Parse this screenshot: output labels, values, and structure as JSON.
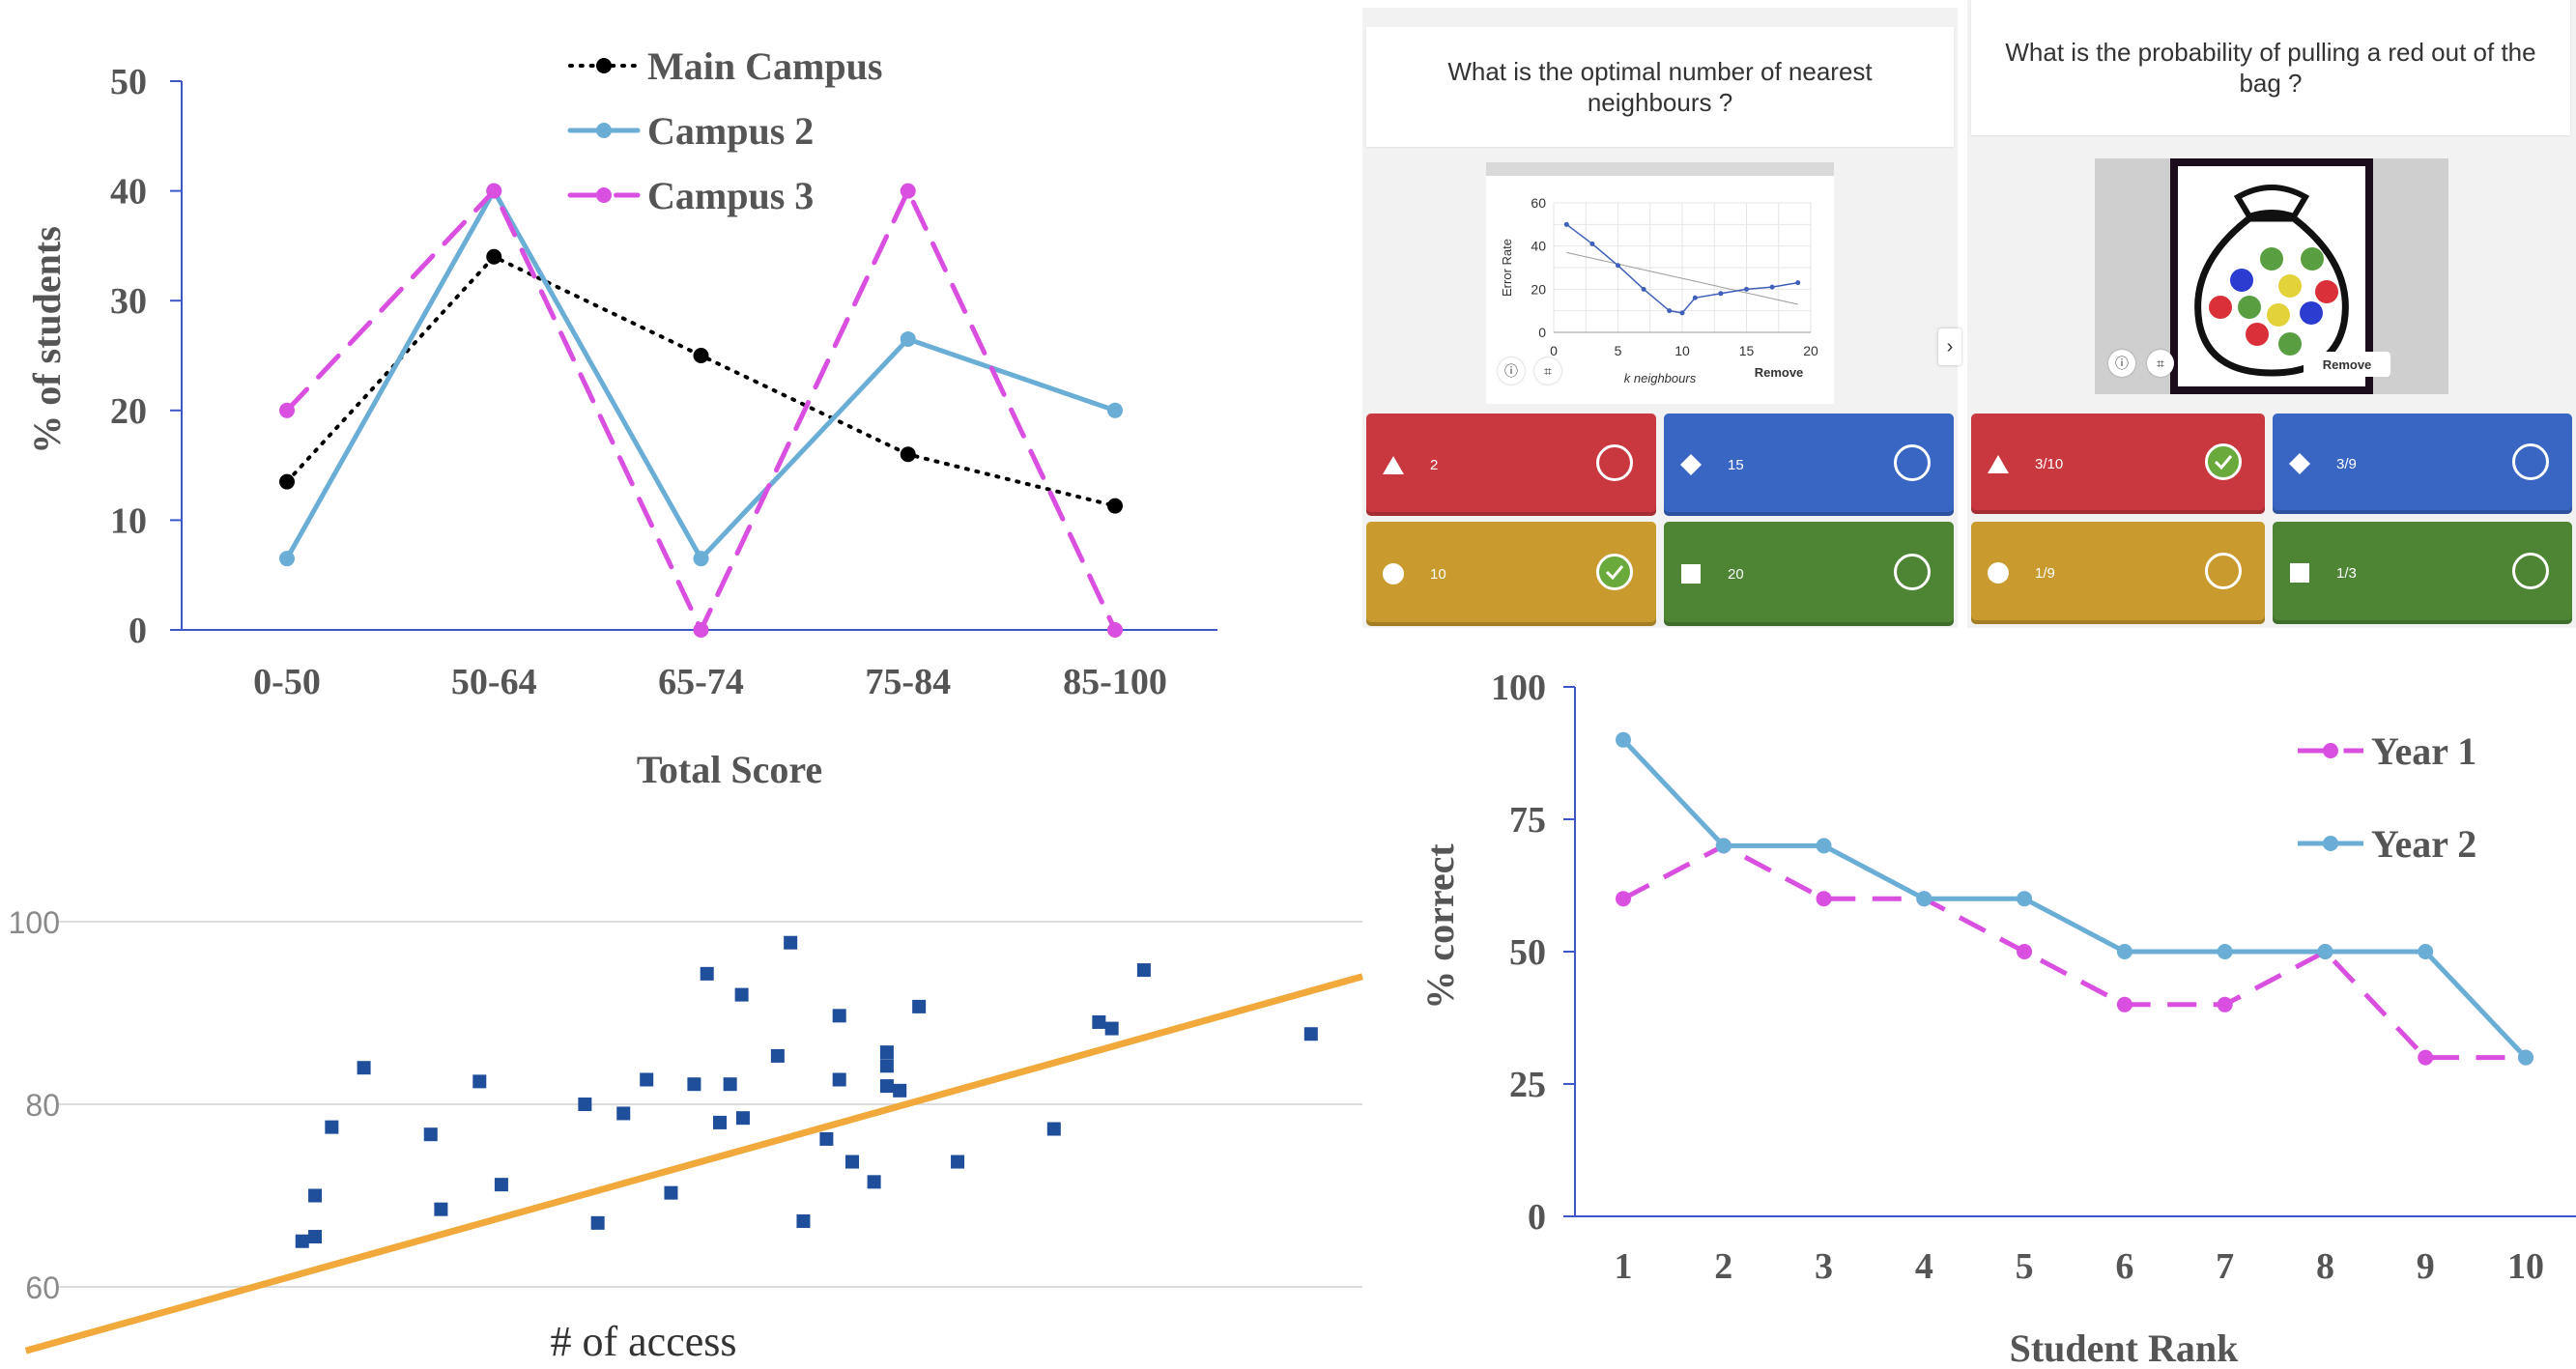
{
  "chart_data": [
    {
      "type": "line",
      "title": "",
      "xlabel": "Total Score",
      "ylabel": "% of students",
      "categories": [
        "0-50",
        "50-64",
        "65-74",
        "75-84",
        "85-100"
      ],
      "ylim": [
        0,
        50
      ],
      "yticks": [
        "0",
        "10",
        "20",
        "30",
        "40",
        "50"
      ],
      "legend_position": "top-center",
      "series": [
        {
          "name": "Main Campus",
          "values": [
            13.5,
            34,
            25,
            16,
            11.3
          ],
          "color": "#000000",
          "style": "dotted"
        },
        {
          "name": "Campus 2",
          "values": [
            6.5,
            40,
            6.5,
            26.5,
            20
          ],
          "color": "#6aaed6",
          "style": "solid"
        },
        {
          "name": "Campus 3",
          "values": [
            20,
            40,
            0,
            40,
            0
          ],
          "color": "#d94fe0",
          "style": "dashed"
        }
      ]
    },
    {
      "type": "scatter",
      "title": "",
      "xlabel": "# of access",
      "ylabel": "",
      "yticks": [
        "60",
        "80",
        "100"
      ],
      "ylim": [
        56,
        104
      ],
      "xlim": [
        0,
        100
      ],
      "point_color": "#1f4e9a",
      "trend_color": "#f2a93b",
      "trendline": [
        [
          -4,
          53
        ],
        [
          100,
          94
        ]
      ],
      "points": [
        [
          17.5,
          65
        ],
        [
          18.5,
          65.5
        ],
        [
          18.5,
          70
        ],
        [
          19.8,
          77.5
        ],
        [
          22.3,
          84
        ],
        [
          27.5,
          76.7
        ],
        [
          28.3,
          68.5
        ],
        [
          31.3,
          82.5
        ],
        [
          33,
          71.2
        ],
        [
          39.5,
          80
        ],
        [
          40.5,
          67
        ],
        [
          42.5,
          79
        ],
        [
          44.3,
          82.7
        ],
        [
          46.2,
          70.3
        ],
        [
          48,
          82.2
        ],
        [
          49,
          94.3
        ],
        [
          50,
          78
        ],
        [
          50.8,
          82.2
        ],
        [
          51.7,
          92
        ],
        [
          51.8,
          78.5
        ],
        [
          54.5,
          85.3
        ],
        [
          55.5,
          97.7
        ],
        [
          56.5,
          67.2
        ],
        [
          58.3,
          76.2
        ],
        [
          59.3,
          82.7
        ],
        [
          59.3,
          89.7
        ],
        [
          60.3,
          73.7
        ],
        [
          62,
          71.5
        ],
        [
          63,
          85.7
        ],
        [
          63,
          84.2
        ],
        [
          63,
          82
        ],
        [
          64,
          81.5
        ],
        [
          65.5,
          90.7
        ],
        [
          68.5,
          73.7
        ],
        [
          76,
          77.3
        ],
        [
          79.5,
          89
        ],
        [
          80.5,
          88.3
        ],
        [
          83,
          94.7
        ],
        [
          96,
          87.7
        ]
      ]
    },
    {
      "type": "line",
      "title": "",
      "xlabel": "Student Rank",
      "ylabel": "% correct",
      "categories": [
        "1",
        "2",
        "3",
        "4",
        "5",
        "6",
        "7",
        "8",
        "9",
        "10"
      ],
      "ylim": [
        0,
        100
      ],
      "yticks": [
        "0",
        "25",
        "50",
        "75",
        "100"
      ],
      "legend_position": "top-right",
      "series": [
        {
          "name": "Year 1",
          "values": [
            60,
            70,
            60,
            60,
            50,
            40,
            40,
            50,
            30,
            30
          ],
          "color": "#d94fe0",
          "style": "dashed"
        },
        {
          "name": "Year 2",
          "values": [
            90,
            70,
            70,
            60,
            60,
            50,
            50,
            50,
            50,
            30
          ],
          "color": "#6aaed6",
          "style": "solid"
        }
      ]
    },
    {
      "type": "line",
      "title": "",
      "xlabel": "k neighbours",
      "ylabel": "Error Rate",
      "x": [
        1,
        3,
        5,
        7,
        9,
        10,
        11,
        13,
        15,
        17,
        19
      ],
      "values": [
        50,
        41,
        31,
        20,
        10,
        9,
        16,
        18,
        20,
        21,
        23
      ],
      "trend": [
        [
          1,
          37
        ],
        [
          19,
          13
        ]
      ],
      "xlim": [
        0,
        20
      ],
      "ylim": [
        0,
        60
      ],
      "xticks": [
        "0",
        "5",
        "10",
        "15",
        "20"
      ],
      "yticks": [
        "0",
        "20",
        "40",
        "60"
      ],
      "color": "#3f5fb8"
    }
  ],
  "quiz": {
    "left": {
      "question": "What is the optimal number of nearest neighbours ?",
      "remove_label": "Remove",
      "answers": [
        {
          "label": "2",
          "color": "#c9383f",
          "shape": "triangle",
          "correct": false
        },
        {
          "label": "15",
          "color": "#3866c2",
          "shape": "diamond",
          "correct": false
        },
        {
          "label": "10",
          "color": "#c99a2e",
          "shape": "circle",
          "correct": true
        },
        {
          "label": "20",
          "color": "#4e8534",
          "shape": "square",
          "correct": false
        }
      ]
    },
    "right": {
      "question": "What is the probability of pulling a red out of the bag ?",
      "remove_label": "Remove",
      "answers": [
        {
          "label": "3/10",
          "color": "#c9383f",
          "shape": "triangle",
          "correct": true
        },
        {
          "label": "3/9",
          "color": "#3866c2",
          "shape": "diamond",
          "correct": false
        },
        {
          "label": "1/9",
          "color": "#c99a2e",
          "shape": "circle",
          "correct": false
        },
        {
          "label": "1/3",
          "color": "#4e8534",
          "shape": "square",
          "correct": false
        }
      ]
    },
    "nav_icon": "chevron-right-icon",
    "info_icon": "info-icon",
    "crop_icon": "crop-icon",
    "bag_icon": "marble-bag-icon"
  }
}
